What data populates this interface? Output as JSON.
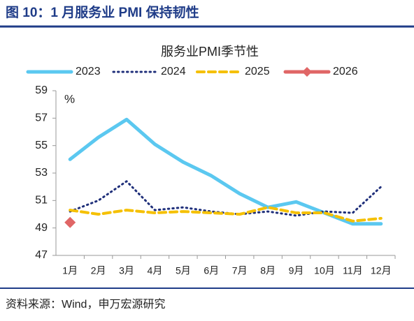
{
  "header": {
    "title": "图 10：1 月服务业 PMI 保持韧性"
  },
  "source": "资料来源：Wind，申万宏源研究",
  "chart_data": {
    "type": "line",
    "title": "服务业PMI季节性",
    "y_unit": "%",
    "categories": [
      "1月",
      "2月",
      "3月",
      "4月",
      "5月",
      "6月",
      "7月",
      "8月",
      "9月",
      "10月",
      "11月",
      "12月"
    ],
    "series": [
      {
        "name": "2023",
        "color": "#5bc8f0",
        "dash": "solid",
        "values": [
          54.0,
          55.6,
          56.9,
          55.1,
          53.8,
          52.8,
          51.5,
          50.5,
          50.9,
          50.1,
          49.3,
          49.3
        ]
      },
      {
        "name": "2024",
        "color": "#1f2f7a",
        "dash": "dotted",
        "values": [
          50.2,
          51.0,
          52.4,
          50.3,
          50.5,
          50.2,
          50.0,
          50.2,
          49.9,
          50.2,
          50.1,
          52.0
        ]
      },
      {
        "name": "2025",
        "color": "#f5c000",
        "dash": "dashed",
        "values": [
          50.3,
          50.0,
          50.3,
          50.1,
          50.2,
          50.1,
          50.0,
          50.5,
          50.1,
          50.1,
          49.5,
          49.7
        ]
      },
      {
        "name": "2026",
        "color": "#e06666",
        "dash": "solid",
        "marker": "diamond",
        "values": [
          49.4,
          null,
          null,
          null,
          null,
          null,
          null,
          null,
          null,
          null,
          null,
          null
        ]
      }
    ],
    "ylim": [
      47,
      59
    ],
    "yticks": [
      47,
      49,
      51,
      53,
      55,
      57,
      59
    ],
    "legend": "top",
    "grid": false
  }
}
